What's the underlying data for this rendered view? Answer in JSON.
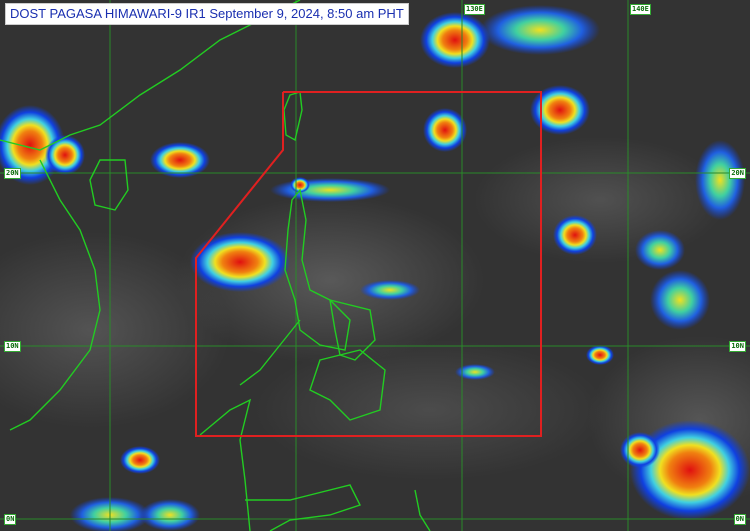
{
  "title": "DOST PAGASA HIMAWARI-9 IR1 September 9, 2024, 8:50 am PHT",
  "grid_labels": {
    "lat": [
      "20N",
      "10N",
      "0N"
    ],
    "lon": [
      "130E",
      "140E"
    ]
  },
  "colors": {
    "par_boundary": "#e02020",
    "coastline": "#22cc22",
    "grid": "#2a8a2a",
    "title_text": "#1a2fb0"
  }
}
